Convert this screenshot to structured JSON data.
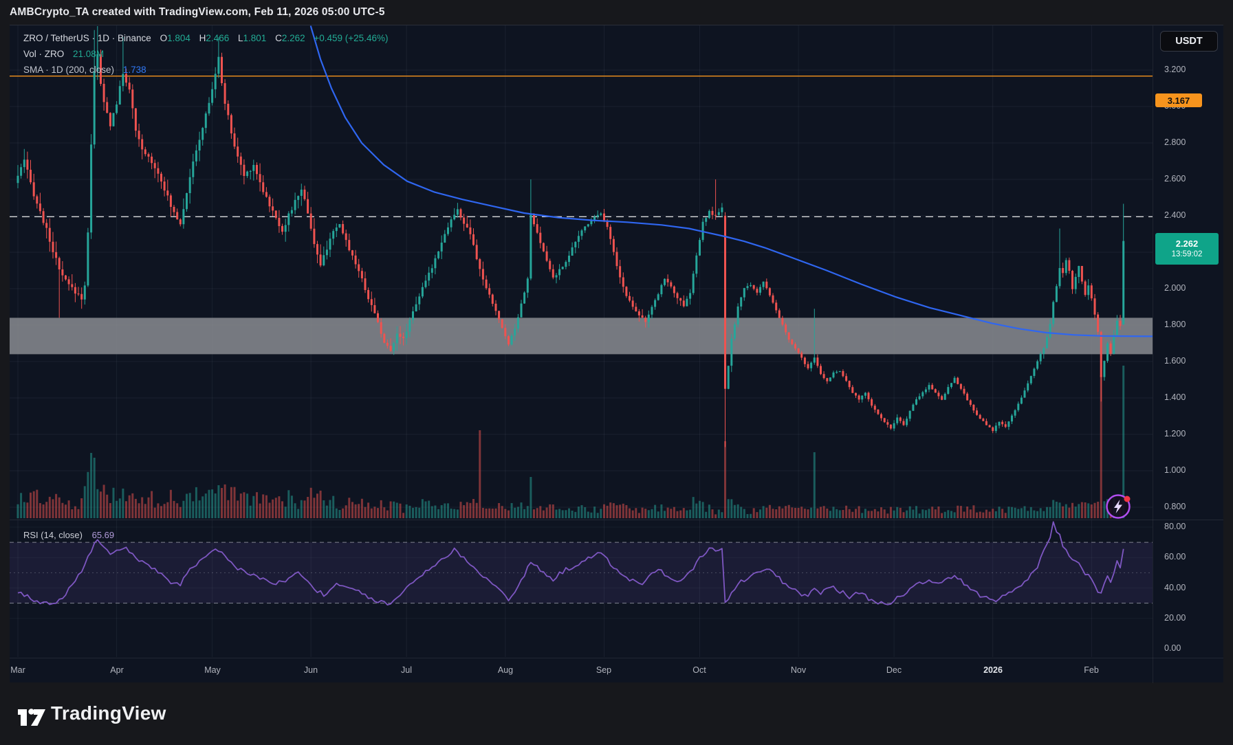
{
  "top_bar": {
    "title": "AMBCrypto_TA created with TradingView.com, Feb 11, 2026 05:00 UTC-5"
  },
  "legend": {
    "symbol_line": "ZRO / TetherUS · 1D · Binance",
    "ohlc": {
      "o_label": "O",
      "o_value": "1.804",
      "h_label": "H",
      "h_value": "2.466",
      "l_label": "L",
      "l_value": "1.801",
      "c_label": "C",
      "c_value": "2.262",
      "change": "+0.459 (+25.46%)"
    },
    "volume_row": {
      "label": "Vol · ZRO",
      "value": "21.08M"
    },
    "sma_row": {
      "label": "SMA · 1D (200, close)",
      "value": "1.738"
    }
  },
  "rsi_legend": {
    "label": "RSI (14, close)",
    "value": "65.69"
  },
  "price_axis": {
    "currency_button": "USDT",
    "labels": [
      "3.200",
      "3.000",
      "2.800",
      "2.600",
      "2.400",
      "2.200",
      "2.000",
      "1.800",
      "1.600",
      "1.400",
      "1.200",
      "1.000",
      "0.800"
    ],
    "alert_badge": "3.167",
    "level_badge": "2.395",
    "current_badge": {
      "price": "2.262",
      "countdown": "13:59:02"
    }
  },
  "rsi_axis": {
    "labels": [
      "80.00",
      "60.00",
      "40.00",
      "20.00",
      "0.00"
    ]
  },
  "time_axis": {
    "labels": [
      "Mar",
      "Apr",
      "May",
      "Jun",
      "Jul",
      "Aug",
      "Sep",
      "Oct",
      "Nov",
      "Dec",
      "2026",
      "Feb"
    ]
  },
  "footer": {
    "brand": "TradingView"
  },
  "colors": {
    "up": "#26a69a",
    "down": "#ef5350",
    "sma": "#2f66f0",
    "rsi": "#7e57c2",
    "orange": "#f7941d",
    "band": "#85878d",
    "teal_text": "#22ab94",
    "blue_text": "#3179f5"
  },
  "chart_data": {
    "type": "candlestick",
    "symbol": "ZRO/TetherUS",
    "interval": "1D",
    "exchange": "Binance",
    "x_range_days": 348,
    "price_axis_range": [
      0.74,
      3.45
    ],
    "rsi_axis_range": [
      0,
      84
    ],
    "month_day_index": [
      0,
      31,
      61,
      92,
      122,
      153,
      184,
      214,
      245,
      275,
      306,
      337
    ],
    "last_candle": {
      "open": 1.804,
      "high": 2.466,
      "low": 1.801,
      "close": 2.262,
      "change": "+0.459 (+25.46%)"
    },
    "levels": {
      "orange_alert_line": 3.167,
      "dashed_resistance": 2.395,
      "support_zone": [
        1.64,
        1.84
      ]
    },
    "volume_last": "21.08M",
    "sma200": {
      "period": 200,
      "last": 1.738,
      "points": [
        [
          438,
          3.44
        ],
        [
          452,
          3.26
        ],
        [
          468,
          3.1
        ],
        [
          488,
          2.94
        ],
        [
          512,
          2.8
        ],
        [
          544,
          2.68
        ],
        [
          578,
          2.59
        ],
        [
          618,
          2.53
        ],
        [
          658,
          2.49
        ],
        [
          700,
          2.455
        ],
        [
          748,
          2.415
        ],
        [
          798,
          2.39
        ],
        [
          848,
          2.375
        ],
        [
          898,
          2.365
        ],
        [
          948,
          2.35
        ],
        [
          988,
          2.33
        ],
        [
          1018,
          2.305
        ],
        [
          1042,
          2.285
        ],
        [
          1068,
          2.26
        ],
        [
          1098,
          2.225
        ],
        [
          1138,
          2.17
        ],
        [
          1188,
          2.1
        ],
        [
          1238,
          2.025
        ],
        [
          1288,
          1.955
        ],
        [
          1338,
          1.895
        ],
        [
          1388,
          1.848
        ],
        [
          1428,
          1.81
        ],
        [
          1468,
          1.78
        ],
        [
          1508,
          1.758
        ],
        [
          1548,
          1.746
        ],
        [
          1590,
          1.74
        ],
        [
          1662,
          1.738
        ]
      ]
    },
    "rsi": {
      "period": 14,
      "last": 65.69,
      "overbought": 70,
      "midline": 50,
      "oversold": 30,
      "anchors": [
        [
          0,
          38
        ],
        [
          5,
          32
        ],
        [
          10,
          29
        ],
        [
          14,
          33
        ],
        [
          18,
          45
        ],
        [
          21,
          55
        ],
        [
          23,
          65
        ],
        [
          25,
          72
        ],
        [
          27,
          68
        ],
        [
          29,
          61
        ],
        [
          31,
          64
        ],
        [
          33,
          67
        ],
        [
          36,
          62
        ],
        [
          40,
          55
        ],
        [
          45,
          50
        ],
        [
          48,
          44
        ],
        [
          51,
          42
        ],
        [
          54,
          52
        ],
        [
          58,
          58
        ],
        [
          62,
          65
        ],
        [
          64,
          63
        ],
        [
          68,
          54
        ],
        [
          72,
          50
        ],
        [
          77,
          46
        ],
        [
          80,
          42
        ],
        [
          84,
          45
        ],
        [
          88,
          50
        ],
        [
          91,
          44
        ],
        [
          94,
          38
        ],
        [
          97,
          35
        ],
        [
          100,
          42
        ],
        [
          104,
          40
        ],
        [
          108,
          36
        ],
        [
          112,
          32
        ],
        [
          115,
          30
        ],
        [
          117,
          29
        ],
        [
          121,
          38
        ],
        [
          125,
          46
        ],
        [
          130,
          54
        ],
        [
          134,
          60
        ],
        [
          137,
          65
        ],
        [
          140,
          60
        ],
        [
          143,
          54
        ],
        [
          147,
          46
        ],
        [
          151,
          39
        ],
        [
          154,
          33
        ],
        [
          157,
          40
        ],
        [
          159,
          48
        ],
        [
          161,
          58
        ],
        [
          164,
          51
        ],
        [
          168,
          46
        ],
        [
          172,
          52
        ],
        [
          176,
          56
        ],
        [
          180,
          60
        ],
        [
          183,
          63
        ],
        [
          186,
          56
        ],
        [
          189,
          50
        ],
        [
          192,
          46
        ],
        [
          195,
          42
        ],
        [
          198,
          47
        ],
        [
          201,
          52
        ],
        [
          204,
          48
        ],
        [
          208,
          44
        ],
        [
          211,
          50
        ],
        [
          214,
          60
        ],
        [
          217,
          66
        ],
        [
          219,
          64
        ],
        [
          221,
          67
        ],
        [
          222,
          30
        ],
        [
          224,
          36
        ],
        [
          227,
          44
        ],
        [
          230,
          48
        ],
        [
          233,
          51
        ],
        [
          236,
          52
        ],
        [
          239,
          46
        ],
        [
          242,
          41
        ],
        [
          245,
          37
        ],
        [
          248,
          34
        ],
        [
          250,
          40
        ],
        [
          252,
          36
        ],
        [
          255,
          41
        ],
        [
          258,
          38
        ],
        [
          261,
          34
        ],
        [
          264,
          37
        ],
        [
          267,
          33
        ],
        [
          270,
          31
        ],
        [
          273,
          29
        ],
        [
          276,
          33
        ],
        [
          279,
          38
        ],
        [
          282,
          42
        ],
        [
          285,
          45
        ],
        [
          288,
          42
        ],
        [
          291,
          46
        ],
        [
          294,
          48
        ],
        [
          297,
          43
        ],
        [
          300,
          38
        ],
        [
          303,
          34
        ],
        [
          306,
          31
        ],
        [
          309,
          34
        ],
        [
          312,
          37
        ],
        [
          315,
          42
        ],
        [
          318,
          48
        ],
        [
          320,
          54
        ],
        [
          322,
          64
        ],
        [
          324,
          74
        ],
        [
          325,
          83
        ],
        [
          326,
          78
        ],
        [
          327,
          74
        ],
        [
          328,
          68
        ],
        [
          330,
          62
        ],
        [
          332,
          58
        ],
        [
          334,
          52
        ],
        [
          336,
          48
        ],
        [
          338,
          42
        ],
        [
          339,
          38
        ],
        [
          340,
          36
        ],
        [
          341,
          42
        ],
        [
          342,
          48
        ],
        [
          343,
          44
        ],
        [
          344,
          51
        ],
        [
          345,
          57
        ],
        [
          346,
          52
        ],
        [
          347,
          65.69
        ]
      ]
    },
    "close_anchors": [
      [
        0,
        2.62
      ],
      [
        2,
        2.7
      ],
      [
        5,
        2.52
      ],
      [
        9,
        2.32
      ],
      [
        13,
        2.1
      ],
      [
        15,
        2.04
      ],
      [
        17,
        2.0
      ],
      [
        20,
        1.95
      ],
      [
        21,
        2.02
      ],
      [
        22,
        2.3
      ],
      [
        23,
        2.8
      ],
      [
        24,
        3.2
      ],
      [
        25,
        3.28
      ],
      [
        26,
        3.12
      ],
      [
        27,
        3.02
      ],
      [
        29,
        2.9
      ],
      [
        31,
        3.02
      ],
      [
        33,
        3.18
      ],
      [
        35,
        3.1
      ],
      [
        37,
        2.86
      ],
      [
        39,
        2.76
      ],
      [
        42,
        2.7
      ],
      [
        45,
        2.6
      ],
      [
        48,
        2.45
      ],
      [
        51,
        2.36
      ],
      [
        54,
        2.62
      ],
      [
        57,
        2.82
      ],
      [
        60,
        3.02
      ],
      [
        62,
        3.18
      ],
      [
        63,
        3.26
      ],
      [
        65,
        3.02
      ],
      [
        68,
        2.78
      ],
      [
        71,
        2.62
      ],
      [
        74,
        2.68
      ],
      [
        77,
        2.54
      ],
      [
        80,
        2.42
      ],
      [
        83,
        2.32
      ],
      [
        86,
        2.44
      ],
      [
        89,
        2.55
      ],
      [
        91,
        2.42
      ],
      [
        93,
        2.25
      ],
      [
        95,
        2.12
      ],
      [
        98,
        2.28
      ],
      [
        101,
        2.35
      ],
      [
        104,
        2.22
      ],
      [
        107,
        2.1
      ],
      [
        110,
        1.95
      ],
      [
        113,
        1.82
      ],
      [
        115,
        1.7
      ],
      [
        117,
        1.66
      ],
      [
        119,
        1.76
      ],
      [
        121,
        1.72
      ],
      [
        124,
        1.88
      ],
      [
        127,
        2.0
      ],
      [
        130,
        2.12
      ],
      [
        133,
        2.26
      ],
      [
        136,
        2.38
      ],
      [
        138,
        2.43
      ],
      [
        140,
        2.36
      ],
      [
        142,
        2.3
      ],
      [
        144,
        2.16
      ],
      [
        147,
        2.0
      ],
      [
        150,
        1.88
      ],
      [
        152,
        1.78
      ],
      [
        154,
        1.7
      ],
      [
        156,
        1.78
      ],
      [
        158,
        1.92
      ],
      [
        160,
        2.05
      ],
      [
        161,
        2.41
      ],
      [
        163,
        2.3
      ],
      [
        165,
        2.2
      ],
      [
        168,
        2.06
      ],
      [
        171,
        2.12
      ],
      [
        174,
        2.22
      ],
      [
        177,
        2.32
      ],
      [
        180,
        2.38
      ],
      [
        183,
        2.42
      ],
      [
        185,
        2.34
      ],
      [
        187,
        2.2
      ],
      [
        189,
        2.06
      ],
      [
        191,
        1.96
      ],
      [
        194,
        1.88
      ],
      [
        197,
        1.82
      ],
      [
        200,
        1.93
      ],
      [
        203,
        2.06
      ],
      [
        206,
        1.98
      ],
      [
        209,
        1.9
      ],
      [
        211,
        1.98
      ],
      [
        213,
        2.18
      ],
      [
        215,
        2.36
      ],
      [
        217,
        2.42
      ],
      [
        219,
        2.4
      ],
      [
        221,
        2.44
      ],
      [
        222,
        1.45
      ],
      [
        223,
        1.58
      ],
      [
        224,
        1.72
      ],
      [
        226,
        1.9
      ],
      [
        228,
        2.0
      ],
      [
        230,
        2.02
      ],
      [
        232,
        1.98
      ],
      [
        234,
        2.04
      ],
      [
        236,
        1.96
      ],
      [
        238,
        1.88
      ],
      [
        240,
        1.8
      ],
      [
        242,
        1.72
      ],
      [
        244,
        1.67
      ],
      [
        246,
        1.62
      ],
      [
        248,
        1.56
      ],
      [
        250,
        1.62
      ],
      [
        252,
        1.53
      ],
      [
        254,
        1.49
      ],
      [
        256,
        1.54
      ],
      [
        258,
        1.55
      ],
      [
        260,
        1.49
      ],
      [
        262,
        1.43
      ],
      [
        264,
        1.39
      ],
      [
        266,
        1.43
      ],
      [
        268,
        1.36
      ],
      [
        270,
        1.31
      ],
      [
        272,
        1.27
      ],
      [
        274,
        1.23
      ],
      [
        276,
        1.29
      ],
      [
        278,
        1.25
      ],
      [
        280,
        1.33
      ],
      [
        282,
        1.39
      ],
      [
        284,
        1.43
      ],
      [
        286,
        1.47
      ],
      [
        288,
        1.43
      ],
      [
        290,
        1.39
      ],
      [
        292,
        1.46
      ],
      [
        294,
        1.51
      ],
      [
        296,
        1.45
      ],
      [
        298,
        1.39
      ],
      [
        300,
        1.33
      ],
      [
        302,
        1.29
      ],
      [
        304,
        1.25
      ],
      [
        306,
        1.22
      ],
      [
        308,
        1.27
      ],
      [
        310,
        1.24
      ],
      [
        312,
        1.3
      ],
      [
        314,
        1.37
      ],
      [
        316,
        1.44
      ],
      [
        318,
        1.52
      ],
      [
        320,
        1.6
      ],
      [
        322,
        1.68
      ],
      [
        324,
        1.8
      ],
      [
        325,
        1.92
      ],
      [
        326,
        2.02
      ],
      [
        327,
        2.12
      ],
      [
        328,
        2.08
      ],
      [
        329,
        2.15
      ],
      [
        330,
        2.1
      ],
      [
        331,
        2.0
      ],
      [
        332,
        2.06
      ],
      [
        333,
        2.12
      ],
      [
        334,
        2.04
      ],
      [
        335,
        1.96
      ],
      [
        336,
        2.02
      ],
      [
        337,
        1.94
      ],
      [
        338,
        1.85
      ],
      [
        339,
        1.76
      ],
      [
        340,
        1.52
      ],
      [
        341,
        1.6
      ],
      [
        342,
        1.7
      ],
      [
        343,
        1.64
      ],
      [
        344,
        1.74
      ],
      [
        345,
        1.82
      ],
      [
        346,
        1.79
      ],
      [
        347,
        2.262
      ]
    ],
    "candle_overrides": {
      "13": {
        "l": 1.84
      },
      "24": {
        "h": 3.42
      },
      "25": {
        "h": 3.45
      },
      "33": {
        "h": 3.38
      },
      "63": {
        "h": 3.38
      },
      "161": {
        "h": 2.6
      },
      "219": {
        "h": 2.6
      },
      "222": {
        "o": 2.4,
        "h": 2.42,
        "l": 1.13,
        "c": 1.45
      },
      "250": {
        "h": 1.89
      },
      "327": {
        "h": 2.33
      },
      "340": {
        "l": 1.38
      },
      "347": {
        "o": 1.804,
        "h": 2.466,
        "l": 1.801,
        "c": 2.262
      }
    },
    "volume_overrides": {
      "23": 95,
      "24": 88,
      "145": 128,
      "161": 60,
      "222": 112,
      "250": 96,
      "340": 208,
      "347": 222
    }
  }
}
